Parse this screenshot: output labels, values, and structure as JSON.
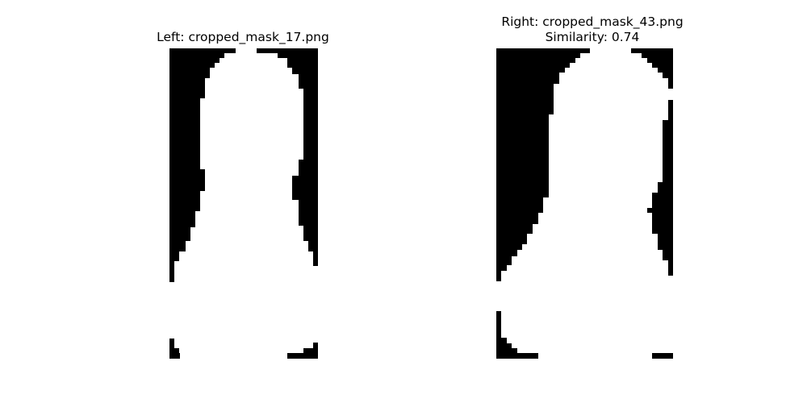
{
  "figure": {
    "left": {
      "title": "Left: cropped_mask_17.png"
    },
    "right": {
      "title_line1": "Right: cropped_mask_43.png",
      "title_line2": "Similarity: 0.74"
    }
  },
  "colors": {
    "background": "#ffffff",
    "mask_dark": "#000000",
    "mask_light": "#ffffff",
    "text": "#000000"
  }
}
